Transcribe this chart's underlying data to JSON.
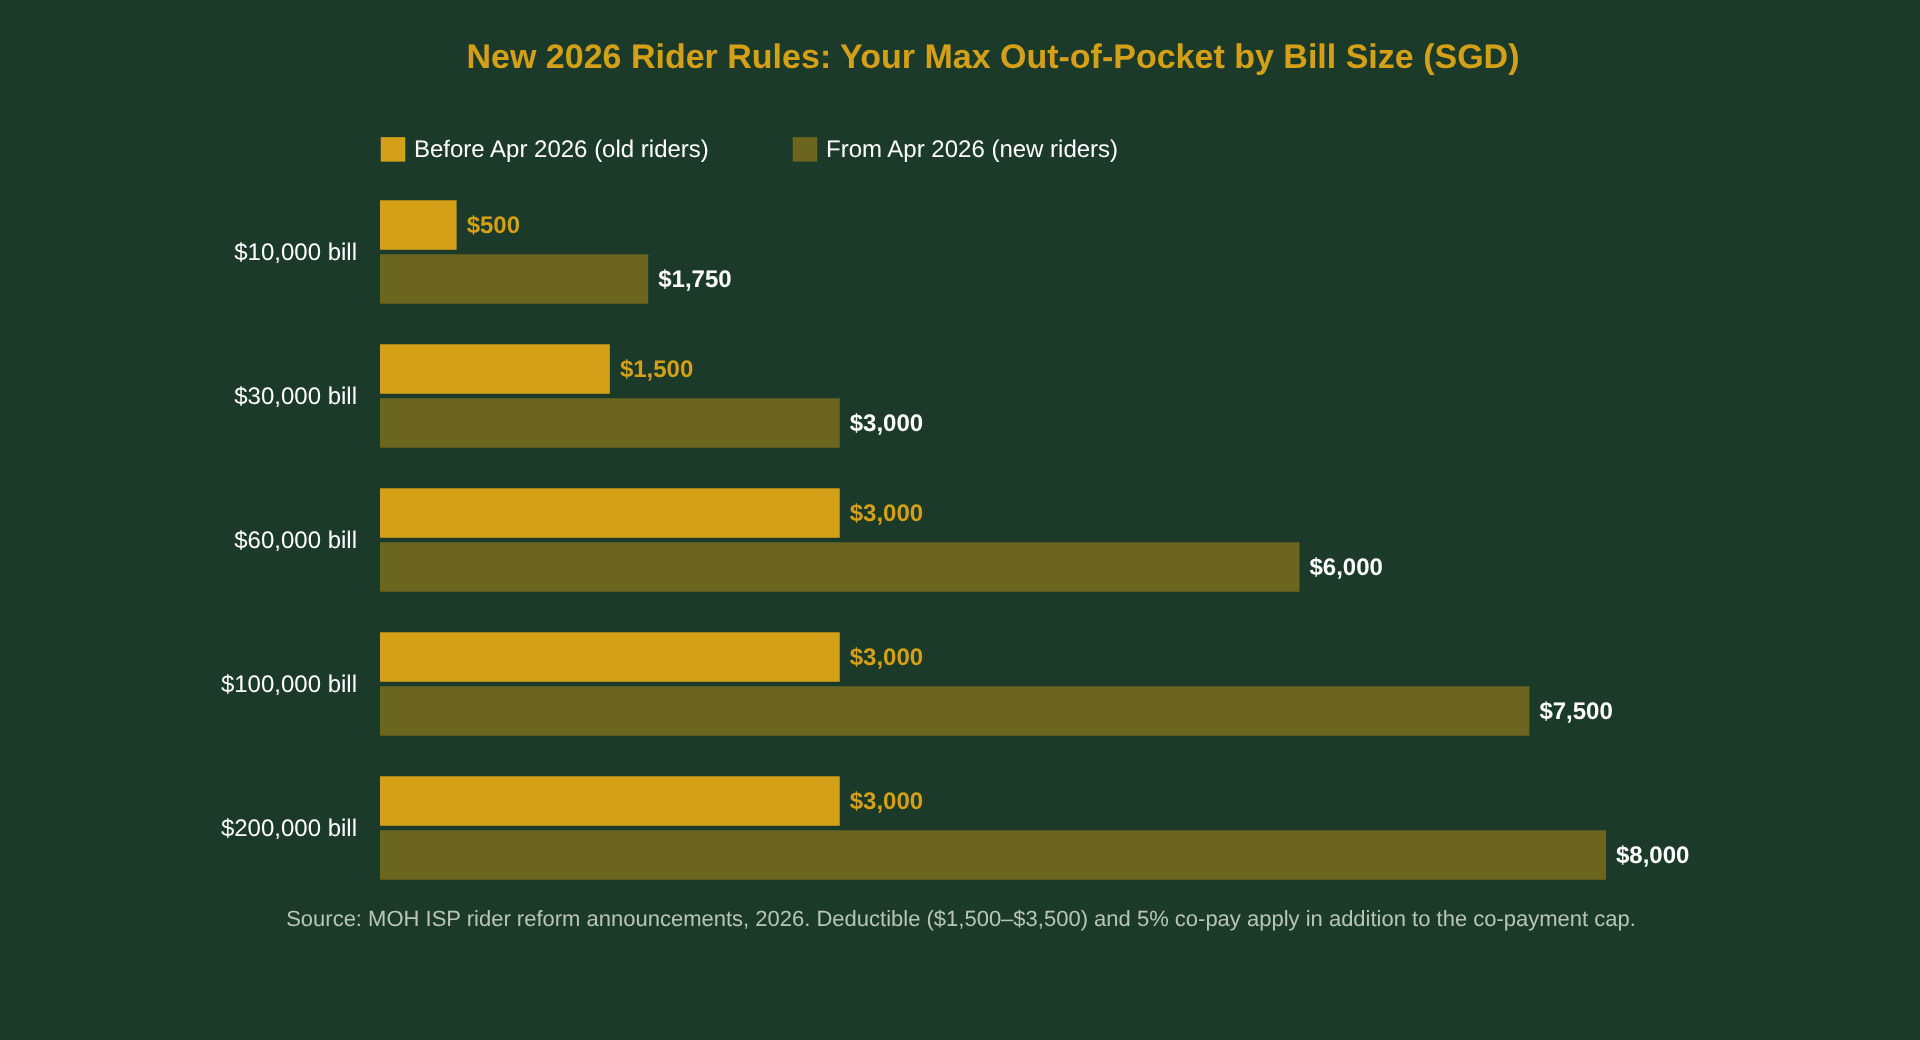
{
  "chart_data": {
    "type": "bar",
    "orientation": "horizontal",
    "title": "New 2026 Rider Rules: Your Max Out-of-Pocket by Bill Size (SGD)",
    "categories": [
      "$10,000 bill",
      "$30,000 bill",
      "$60,000 bill",
      "$100,000 bill",
      "$200,000 bill"
    ],
    "series": [
      {
        "name": "Before Apr 2026 (old riders)",
        "color": "#d4a017",
        "values": [
          500,
          1500,
          3000,
          3000,
          3000
        ],
        "value_labels": [
          "$500",
          "$1,500",
          "$3,000",
          "$3,000",
          "$3,000"
        ]
      },
      {
        "name": "From Apr 2026 (new riders)",
        "color": "#6b6520",
        "values": [
          1750,
          3000,
          6000,
          7500,
          8000
        ],
        "value_labels": [
          "$1,750",
          "$3,000",
          "$6,000",
          "$7,500",
          "$8,000"
        ]
      }
    ],
    "legend": "top left",
    "grid": false,
    "annotations": [
      "Source: MOH ISP rider reform announcements, 2026. Deductible ($1,500–$3,500) and 5% co-pay apply in addition to the co-payment cap."
    ]
  }
}
